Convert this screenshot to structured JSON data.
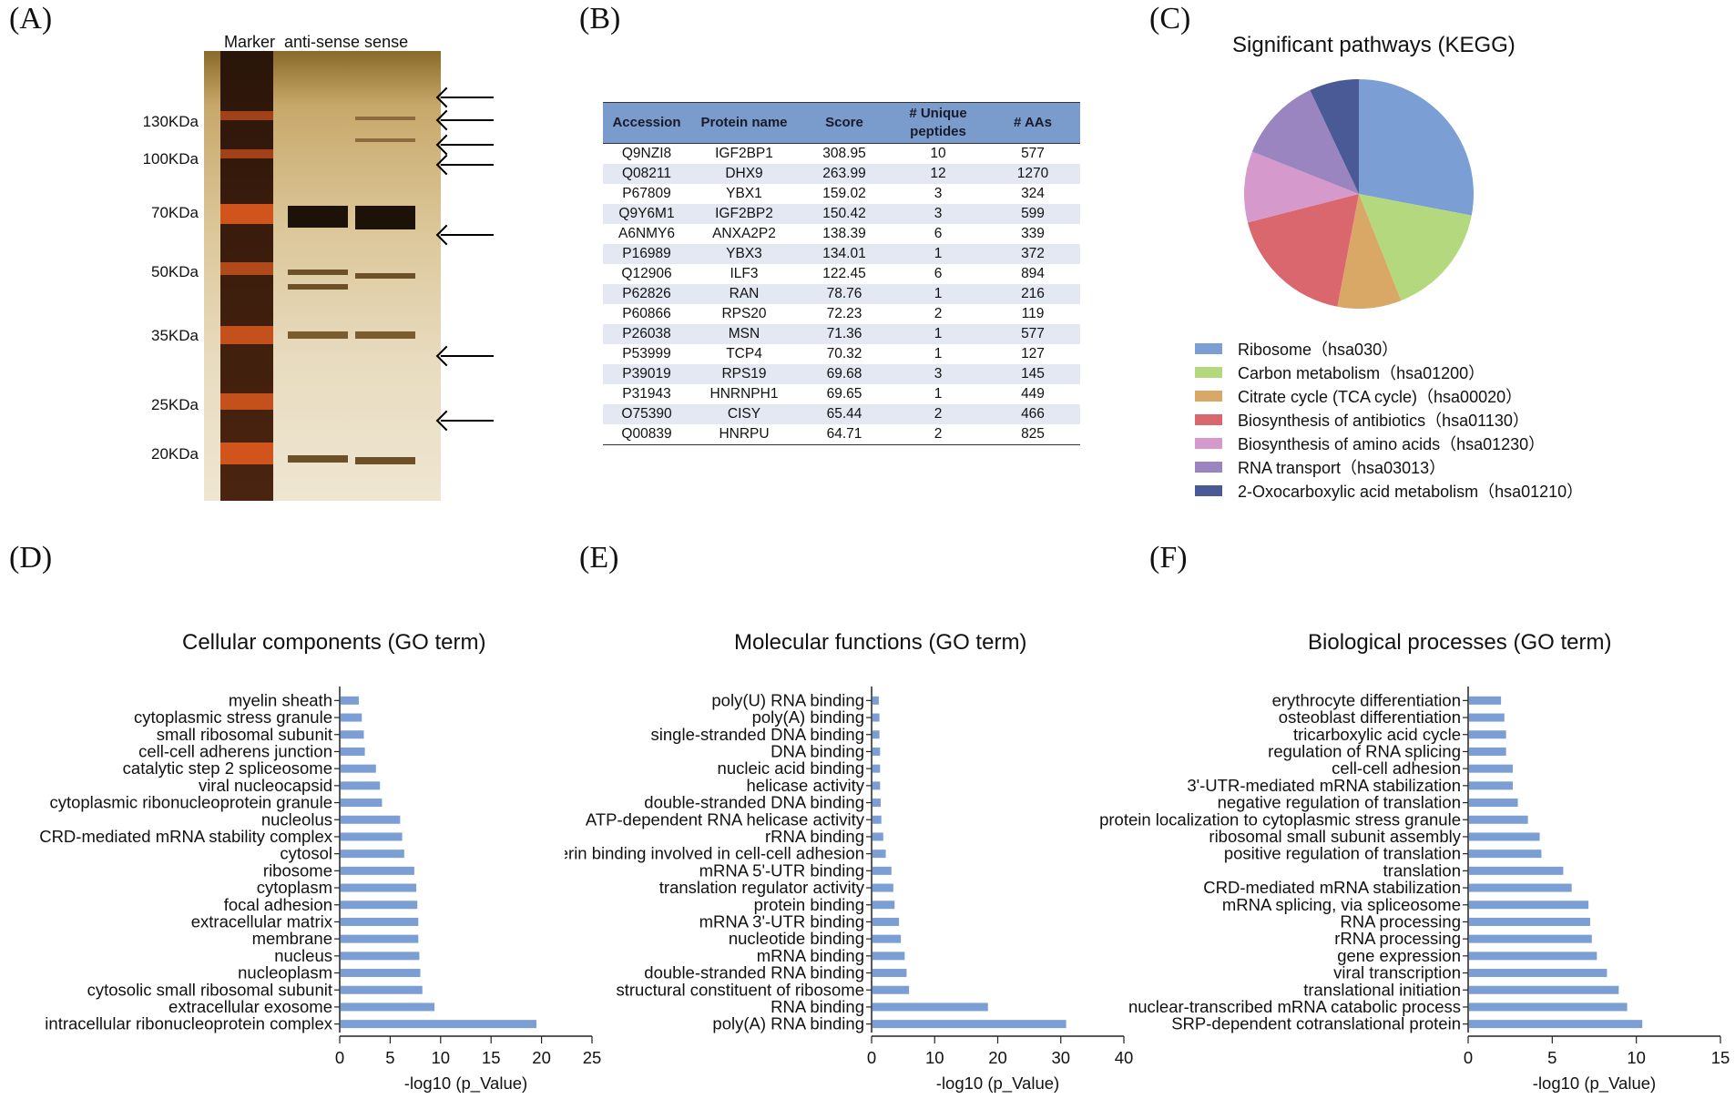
{
  "panel_labels": {
    "a": "(A)",
    "b": "(B)",
    "c": "(C)",
    "d": "(D)",
    "e": "(E)",
    "f": "(F)"
  },
  "gel": {
    "lane_header": "Marker  anti-sense sense",
    "markers": [
      "130KDa",
      "100KDa",
      "70KDa",
      "50KDa",
      "35KDa",
      "25KDa",
      "20KDa"
    ],
    "arrow_count": 7
  },
  "table": {
    "headers": [
      "Accession",
      "Protein name",
      "Score",
      "# Unique peptides",
      "# AAs"
    ],
    "rows": [
      [
        "Q9NZI8",
        "IGF2BP1",
        "308.95",
        "10",
        "577"
      ],
      [
        "Q08211",
        "DHX9",
        "263.99",
        "12",
        "1270"
      ],
      [
        "P67809",
        "YBX1",
        "159.02",
        "3",
        "324"
      ],
      [
        "Q9Y6M1",
        "IGF2BP2",
        "150.42",
        "3",
        "599"
      ],
      [
        "A6NMY6",
        "ANXA2P2",
        "138.39",
        "6",
        "339"
      ],
      [
        "P16989",
        "YBX3",
        "134.01",
        "1",
        "372"
      ],
      [
        "Q12906",
        "ILF3",
        "122.45",
        "6",
        "894"
      ],
      [
        "P62826",
        "RAN",
        "78.76",
        "1",
        "216"
      ],
      [
        "P60866",
        "RPS20",
        "72.23",
        "2",
        "119"
      ],
      [
        "P26038",
        "MSN",
        "71.36",
        "1",
        "577"
      ],
      [
        "P53999",
        "TCP4",
        "70.32",
        "1",
        "127"
      ],
      [
        "P39019",
        "RPS19",
        "69.68",
        "3",
        "145"
      ],
      [
        "P31943",
        "HNRNPH1",
        "69.65",
        "1",
        "449"
      ],
      [
        "O75390",
        "CISY",
        "65.44",
        "2",
        "466"
      ],
      [
        "Q00839",
        "HNRPU",
        "64.71",
        "2",
        "825"
      ]
    ]
  },
  "chart_data": [
    {
      "type": "pie",
      "title": "Significant pathways (KEGG)",
      "labels": [
        "Ribosome（hsa030）",
        "Carbon metabolism（hsa01200）",
        "Citrate cycle (TCA cycle)（hsa00020）",
        "Biosynthesis of antibiotics（hsa01130）",
        "Biosynthesis of amino acids（hsa01230）",
        "RNA transport（hsa03013）",
        "2-Oxocarboxylic acid metabolism（hsa01210）"
      ],
      "values": [
        28,
        16,
        9,
        18,
        10,
        12,
        7
      ],
      "colors": [
        "#7b9ed4",
        "#b3d87e",
        "#d9a867",
        "#d9676d",
        "#d699cc",
        "#9a85c1",
        "#4a5a96"
      ],
      "legend": "bottom"
    },
    {
      "type": "bar",
      "orientation": "horizontal",
      "title": "Cellular components (GO term)",
      "xlabel": "-log10 (p_Value)",
      "xlim": [
        0,
        25
      ],
      "xticks": [
        0,
        5,
        10,
        15,
        20,
        25
      ],
      "categories": [
        "myelin sheath",
        "cytoplasmic stress granule",
        "small ribosomal subunit",
        "cell-cell adherens junction",
        "catalytic step 2 spliceosome",
        "viral nucleocapsid",
        "cytoplasmic ribonucleoprotein granule",
        "nucleolus",
        "CRD-mediated mRNA stability complex",
        "cytosol",
        "ribosome",
        "cytoplasm",
        "focal adhesion",
        "extracellular matrix",
        "membrane",
        "nucleus",
        "nucleoplasm",
        "cytosolic small ribosomal subunit",
        "extracellular exosome",
        "intracellular ribonucleoprotein complex"
      ],
      "values": [
        1.8,
        2.1,
        2.3,
        2.4,
        3.5,
        3.9,
        4.1,
        5.9,
        6.1,
        6.3,
        7.3,
        7.5,
        7.6,
        7.7,
        7.7,
        7.8,
        7.9,
        8.1,
        9.3,
        19.4
      ]
    },
    {
      "type": "bar",
      "orientation": "horizontal",
      "title": "Molecular functions (GO term)",
      "xlabel": "-log10 (p_Value)",
      "xlim": [
        0,
        40
      ],
      "xticks": [
        0,
        10,
        20,
        30,
        40
      ],
      "categories": [
        "poly(U) RNA binding",
        "poly(A) binding",
        "single-stranded DNA binding",
        "DNA binding",
        "nucleic acid binding",
        "helicase activity",
        "double-stranded DNA binding",
        "ATP-dependent RNA helicase activity",
        "rRNA binding",
        "cadherin binding involved in cell-cell adhesion",
        "mRNA 5'-UTR binding",
        "translation regulator activity",
        "protein binding",
        "mRNA 3'-UTR binding",
        "nucleotide binding",
        "mRNA binding",
        "double-stranded RNA binding",
        "structural constituent of ribosome",
        "RNA binding",
        "poly(A) RNA binding"
      ],
      "values": [
        1.0,
        1.1,
        1.1,
        1.2,
        1.2,
        1.2,
        1.3,
        1.4,
        1.7,
        2.1,
        3.0,
        3.3,
        3.5,
        4.2,
        4.5,
        5.1,
        5.4,
        5.8,
        18.3,
        30.7
      ]
    },
    {
      "type": "bar",
      "orientation": "horizontal",
      "title": "Biological processes (GO term)",
      "xlabel": "-log10 (p_Value)",
      "xlim": [
        0,
        15
      ],
      "xticks": [
        0,
        5,
        10,
        15
      ],
      "categories": [
        "erythrocyte differentiation",
        "osteoblast differentiation",
        "tricarboxylic acid cycle",
        "regulation of RNA splicing",
        "cell-cell adhesion",
        "3'-UTR-mediated mRNA stabilization",
        "negative regulation of translation",
        "protein localization to cytoplasmic stress granule",
        "ribosomal small subunit assembly",
        "positive regulation of translation",
        "translation",
        "CRD-mediated mRNA stabilization",
        "mRNA splicing, via spliceosome",
        "RNA processing",
        "rRNA processing",
        "gene expression",
        "viral transcription",
        "translational initiation",
        "nuclear-transcribed mRNA catabolic process",
        "SRP-dependent cotranslational protein"
      ],
      "values": [
        1.9,
        2.1,
        2.2,
        2.2,
        2.6,
        2.6,
        2.9,
        3.5,
        4.2,
        4.3,
        5.6,
        6.1,
        7.1,
        7.2,
        7.3,
        7.6,
        8.2,
        8.9,
        9.4,
        10.3
      ]
    }
  ]
}
